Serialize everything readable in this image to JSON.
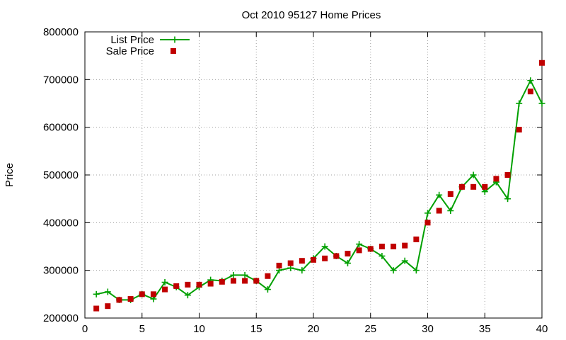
{
  "chart_data": {
    "type": "line",
    "title": "Oct 2010 95127 Home Prices",
    "xlabel": "",
    "ylabel": "Price",
    "xlim": [
      0,
      40
    ],
    "ylim": [
      200000,
      800000
    ],
    "xticks": [
      0,
      5,
      10,
      15,
      20,
      25,
      30,
      35,
      40
    ],
    "yticks": [
      200000,
      300000,
      400000,
      500000,
      600000,
      700000,
      800000
    ],
    "grid": true,
    "legend": "top-left",
    "x": [
      1,
      2,
      3,
      4,
      5,
      6,
      7,
      8,
      9,
      10,
      11,
      12,
      13,
      14,
      15,
      16,
      17,
      18,
      19,
      20,
      21,
      22,
      23,
      24,
      25,
      26,
      27,
      28,
      29,
      30,
      31,
      32,
      33,
      34,
      35,
      36,
      37,
      38,
      39,
      40
    ],
    "series": [
      {
        "name": "List Price",
        "style": "linespoints",
        "marker": "plus",
        "color": "#00a000",
        "values": [
          250000,
          255000,
          238000,
          238000,
          250000,
          240000,
          275000,
          265000,
          248000,
          265000,
          280000,
          278000,
          290000,
          290000,
          278000,
          260000,
          300000,
          305000,
          300000,
          325000,
          350000,
          330000,
          315000,
          355000,
          345000,
          330000,
          300000,
          320000,
          300000,
          420000,
          458000,
          425000,
          475000,
          500000,
          465000,
          485000,
          450000,
          650000,
          698000,
          650000
        ]
      },
      {
        "name": "Sale Price",
        "style": "points",
        "marker": "square",
        "color": "#c00000",
        "values": [
          220000,
          225000,
          238000,
          240000,
          250000,
          250000,
          260000,
          267000,
          270000,
          270000,
          272000,
          276000,
          278000,
          278000,
          278000,
          288000,
          310000,
          315000,
          320000,
          322000,
          325000,
          330000,
          335000,
          342000,
          345000,
          350000,
          350000,
          352000,
          365000,
          400000,
          425000,
          460000,
          475000,
          475000,
          475000,
          492000,
          500000,
          595000,
          675000,
          735000
        ]
      }
    ]
  }
}
